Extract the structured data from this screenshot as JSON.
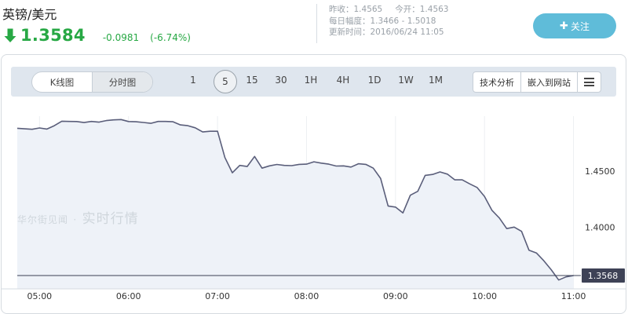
{
  "header": {
    "pair": "英镑/美元",
    "price": "1.3584",
    "change": "-0.0981",
    "change_pct": "(-6.74%)",
    "direction_icon": "arrow-down-icon",
    "color_down": "#27a844"
  },
  "stats": {
    "prev_close_label": "昨收：",
    "prev_close": "1.4565",
    "open_label": "今开：",
    "open": "1.4563",
    "range_label": "每日幅度：",
    "range": "1.3466 - 1.5018",
    "updated_label": "更新时间：",
    "updated": "2016/06/24 11:05"
  },
  "follow_button": {
    "icon": "plus-icon",
    "label": "关注",
    "color": "#5fbcd9"
  },
  "toolbar": {
    "chart_types": [
      {
        "label": "K线图",
        "active": false
      },
      {
        "label": "分时图",
        "active": true
      }
    ],
    "periods": [
      {
        "label": "1",
        "active": false
      },
      {
        "label": "5",
        "active": true
      },
      {
        "label": "15",
        "active": false
      },
      {
        "label": "30",
        "active": false
      },
      {
        "label": "1H",
        "active": false
      },
      {
        "label": "4H",
        "active": false
      },
      {
        "label": "1D",
        "active": false
      },
      {
        "label": "1W",
        "active": false
      },
      {
        "label": "1M",
        "active": false
      }
    ],
    "tech_analysis": "技术分析",
    "embed": "嵌入到网站",
    "menu_icon": "list-icon"
  },
  "watermark": {
    "brand": "华尔街见闻",
    "sep": "·",
    "text": "实时行情"
  },
  "chart_data": {
    "type": "area",
    "x_ticks": [
      "05:00",
      "06:00",
      "07:00",
      "08:00",
      "09:00",
      "10:00",
      "11:00"
    ],
    "y_ticks": [
      "1.4500",
      "1.4000"
    ],
    "current_value": "1.3568",
    "current_value_num": 1.3568,
    "xlim": [
      "04:45",
      "11:05"
    ],
    "ylim": [
      1.3505,
      1.4993
    ],
    "line_color": "#5a5e7a",
    "fill_color": "#eef2f8",
    "grid": "vertical",
    "points": [
      [
        "04:45",
        1.4885
      ],
      [
        "04:50",
        1.488
      ],
      [
        "04:55",
        1.4876
      ],
      [
        "05:00",
        1.4888
      ],
      [
        "05:05",
        1.4878
      ],
      [
        "05:10",
        1.4908
      ],
      [
        "05:15",
        1.4948
      ],
      [
        "05:20",
        1.4946
      ],
      [
        "05:25",
        1.4945
      ],
      [
        "05:30",
        1.4936
      ],
      [
        "05:35",
        1.4946
      ],
      [
        "05:40",
        1.494
      ],
      [
        "05:45",
        1.4954
      ],
      [
        "05:50",
        1.496
      ],
      [
        "05:55",
        1.4963
      ],
      [
        "06:00",
        1.4945
      ],
      [
        "06:05",
        1.4943
      ],
      [
        "06:10",
        1.4937
      ],
      [
        "06:15",
        1.4929
      ],
      [
        "06:20",
        1.4946
      ],
      [
        "06:25",
        1.4946
      ],
      [
        "06:30",
        1.4943
      ],
      [
        "06:35",
        1.4915
      ],
      [
        "06:40",
        1.4908
      ],
      [
        "06:45",
        1.4889
      ],
      [
        "06:50",
        1.4852
      ],
      [
        "06:55",
        1.4858
      ],
      [
        "07:00",
        1.4858
      ],
      [
        "07:05",
        1.4623
      ],
      [
        "07:10",
        1.4487
      ],
      [
        "07:15",
        1.4553
      ],
      [
        "07:20",
        1.4543
      ],
      [
        "07:25",
        1.4633
      ],
      [
        "07:30",
        1.4528
      ],
      [
        "07:35",
        1.4549
      ],
      [
        "07:40",
        1.4561
      ],
      [
        "07:45",
        1.4553
      ],
      [
        "07:50",
        1.4551
      ],
      [
        "07:55",
        1.4562
      ],
      [
        "08:00",
        1.4564
      ],
      [
        "08:05",
        1.4585
      ],
      [
        "08:10",
        1.4573
      ],
      [
        "08:15",
        1.4564
      ],
      [
        "08:20",
        1.4547
      ],
      [
        "08:25",
        1.4549
      ],
      [
        "08:30",
        1.4538
      ],
      [
        "08:35",
        1.4568
      ],
      [
        "08:40",
        1.4562
      ],
      [
        "08:45",
        1.4528
      ],
      [
        "08:50",
        1.4436
      ],
      [
        "08:55",
        1.419
      ],
      [
        "09:00",
        1.418
      ],
      [
        "09:05",
        1.4128
      ],
      [
        "09:10",
        1.4286
      ],
      [
        "09:15",
        1.4321
      ],
      [
        "09:20",
        1.4464
      ],
      [
        "09:25",
        1.4472
      ],
      [
        "09:30",
        1.4495
      ],
      [
        "09:35",
        1.4475
      ],
      [
        "09:40",
        1.4424
      ],
      [
        "09:45",
        1.4424
      ],
      [
        "09:50",
        1.4388
      ],
      [
        "09:55",
        1.4356
      ],
      [
        "10:00",
        1.4275
      ],
      [
        "10:05",
        1.4152
      ],
      [
        "10:10",
        1.4083
      ],
      [
        "10:15",
        1.3988
      ],
      [
        "10:20",
        1.4001
      ],
      [
        "10:25",
        1.3963
      ],
      [
        "10:30",
        1.3794
      ],
      [
        "10:35",
        1.377
      ],
      [
        "10:40",
        1.37
      ],
      [
        "10:45",
        1.362
      ],
      [
        "10:50",
        1.3528
      ],
      [
        "10:55",
        1.3556
      ],
      [
        "11:00",
        1.3568
      ]
    ]
  }
}
